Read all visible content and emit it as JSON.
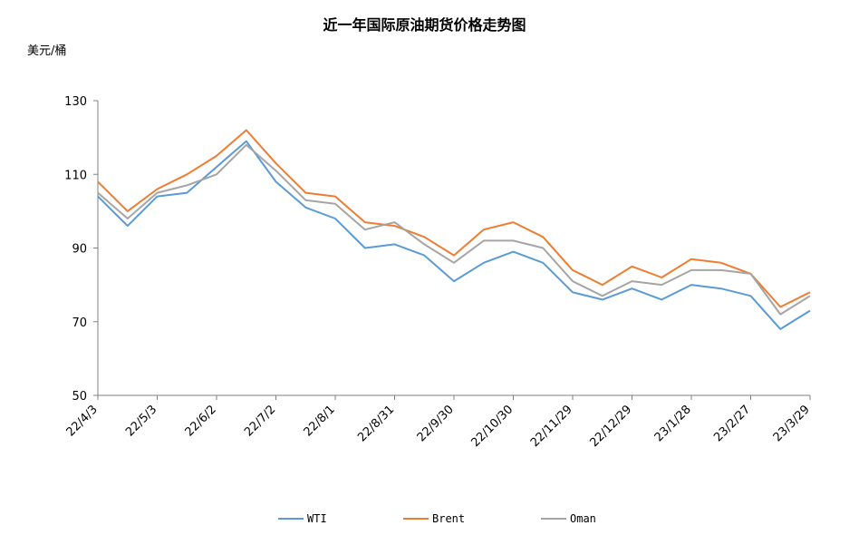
{
  "chart_data": {
    "type": "line",
    "title": "近一年国际原油期货价格走势图",
    "ylabel": "美元/桶",
    "xlabel": "",
    "ylim": [
      50,
      130
    ],
    "yticks": [
      50,
      70,
      90,
      110,
      130
    ],
    "xticks": [
      "22/4/3",
      "22/5/3",
      "22/6/2",
      "22/7/2",
      "22/8/1",
      "22/8/31",
      "22/9/30",
      "22/10/30",
      "22/11/29",
      "22/12/29",
      "23/1/28",
      "23/2/27",
      "23/3/29"
    ],
    "x": [
      "22/4/3",
      "22/4/18",
      "22/5/3",
      "22/5/18",
      "22/6/2",
      "22/6/17",
      "22/7/2",
      "22/7/17",
      "22/8/1",
      "22/8/16",
      "22/8/31",
      "22/9/15",
      "22/9/30",
      "22/10/15",
      "22/10/30",
      "22/11/14",
      "22/11/29",
      "22/12/14",
      "22/12/29",
      "23/1/13",
      "23/1/28",
      "23/2/12",
      "23/2/27",
      "23/3/14",
      "23/3/29"
    ],
    "series": [
      {
        "name": "WTI",
        "color": "#5b9bd5",
        "values": [
          104,
          96,
          104,
          105,
          112,
          119,
          108,
          101,
          98,
          90,
          91,
          88,
          81,
          86,
          89,
          86,
          78,
          76,
          79,
          76,
          80,
          79,
          77,
          68,
          73
        ]
      },
      {
        "name": "Brent",
        "color": "#ed7d31",
        "values": [
          108,
          100,
          106,
          110,
          115,
          122,
          113,
          105,
          104,
          97,
          96,
          93,
          88,
          95,
          97,
          93,
          84,
          80,
          85,
          82,
          87,
          86,
          83,
          74,
          78
        ]
      },
      {
        "name": "Oman",
        "color": "#a5a5a5",
        "values": [
          105,
          98,
          105,
          107,
          110,
          118,
          111,
          103,
          102,
          95,
          97,
          91,
          86,
          92,
          92,
          90,
          81,
          77,
          81,
          80,
          84,
          84,
          83,
          72,
          77
        ]
      }
    ],
    "legend_position": "bottom",
    "grid": false
  }
}
